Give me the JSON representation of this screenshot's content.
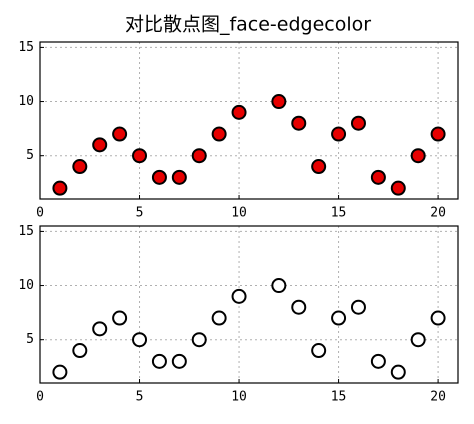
{
  "title": "对比散点图_face-edgecolor",
  "chart_data": [
    {
      "type": "scatter",
      "x": [
        1,
        2,
        3,
        4,
        5,
        6,
        7,
        8,
        9,
        10,
        12,
        13,
        14,
        15,
        16,
        17,
        18,
        19,
        20
      ],
      "values": [
        2,
        4,
        6,
        7,
        5,
        3,
        3,
        5,
        7,
        9,
        10,
        8,
        4,
        7,
        8,
        3,
        2,
        5,
        7
      ],
      "facecolor": "#e60000",
      "edgecolor": "#000000",
      "xlim": [
        0,
        21
      ],
      "ylim": [
        1,
        15.5
      ],
      "xticks": [
        0,
        5,
        10,
        15,
        20
      ],
      "yticks": [
        5,
        10,
        15
      ],
      "grid": true
    },
    {
      "type": "scatter",
      "x": [
        1,
        2,
        3,
        4,
        5,
        6,
        7,
        8,
        9,
        10,
        12,
        13,
        14,
        15,
        16,
        17,
        18,
        19,
        20
      ],
      "values": [
        2,
        4,
        6,
        7,
        5,
        3,
        3,
        5,
        7,
        9,
        10,
        8,
        4,
        7,
        8,
        3,
        2,
        5,
        7
      ],
      "facecolor": "#ffffff",
      "edgecolor": "#000000",
      "xlim": [
        0,
        21
      ],
      "ylim": [
        1,
        15.5
      ],
      "xticks": [
        0,
        5,
        10,
        15,
        20
      ],
      "yticks": [
        5,
        10,
        15
      ],
      "grid": true
    }
  ]
}
